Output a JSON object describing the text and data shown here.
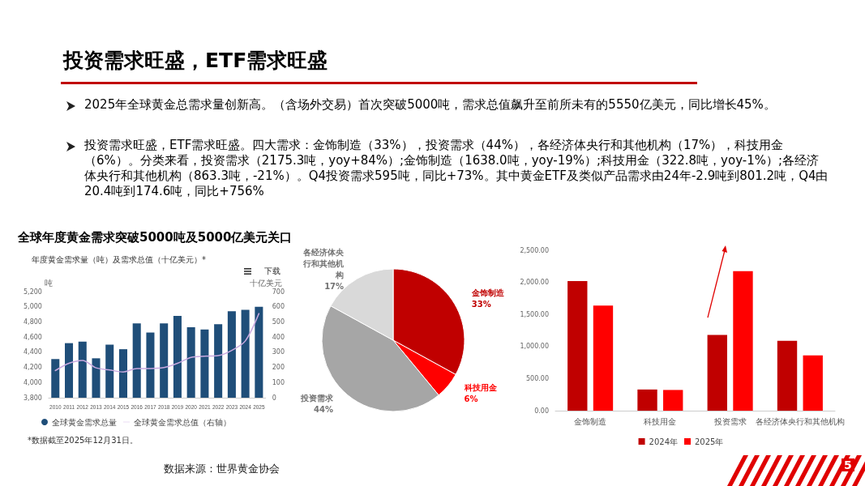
{
  "chart_data": [
    {
      "type": "other",
      "title": "投资需求旺盛，ETF需求旺盛",
      "annotations": [
        "2025年全球黄金总需求量创新高。（含场外交易）首次突破5000吨，需求总值飙升至前所未有的5550亿美元，同比增长45%。",
        "投资需求旺盛，ETF需求旺盛。四大需求：金饰制造（33%），投资需求（44%），各经济体央行和其他机构（17%），科技用金（6%）。分类来看，投资需求（2175.3吨，yoy+84%）;金饰制造（1638.0吨，yoy-19%）;科技用金（322.8吨，yoy-1%）;各经济体央行和其他机构（863.3吨，-21%）。Q4投资需求595吨，同比+73%。其中黄金ETF及类似产品需求由24年-2.9吨到801.2吨，Q4由20.4吨到174.6吨，同比+756%",
        "全球年度黄金需求突破5000吨及5000亿美元关口",
        "数据来源：世界黄金协会",
        "5"
      ]
    },
    {
      "type": "bar",
      "title": "年度黄金需求量（吨）及需求总值（十亿美元）*",
      "ylabel": "吨",
      "y2label": "十亿美元",
      "categories": [
        "2010",
        "2011",
        "2012",
        "2013",
        "2014",
        "2015",
        "2016",
        "2017",
        "2018",
        "2019",
        "2020",
        "2021",
        "2022",
        "2023",
        "2024",
        "2025"
      ],
      "series": [
        {
          "name": "全球黄金需求总量",
          "type": "bar",
          "color": "#1f4e79",
          "values": [
            4310,
            4520,
            4540,
            4320,
            4500,
            4440,
            4780,
            4660,
            4780,
            4880,
            4730,
            4700,
            4770,
            4940,
            4960,
            5000
          ]
        },
        {
          "name": "全球黄金需求总值（右轴）",
          "type": "line",
          "axis": "y2",
          "color": "#c9a9e0",
          "values": [
            179,
            227,
            246,
            197,
            183,
            170,
            193,
            193,
            199,
            227,
            266,
            274,
            278,
            312,
            375,
            555
          ]
        }
      ],
      "ylim": [
        3800,
        5200
      ],
      "yticks": [
        {
          "value": 3800,
          "label": "3,800"
        },
        {
          "value": 4000,
          "label": "4,000"
        },
        {
          "value": 4200,
          "label": "4,200"
        },
        {
          "value": 4400,
          "label": "4,400"
        },
        {
          "value": 4600,
          "label": "4,600"
        },
        {
          "value": 4800,
          "label": "4,800"
        },
        {
          "value": 5000,
          "label": "5,000"
        },
        {
          "value": 5200,
          "label": "5,200"
        }
      ],
      "y2lim": [
        0,
        700
      ],
      "y2ticks": [
        0,
        100,
        200,
        300,
        400,
        500,
        600,
        700
      ],
      "legend": "bottom left",
      "marker": "none",
      "annotations": [
        "下载",
        "*数据截至2025年12月31日。"
      ]
    },
    {
      "type": "pie",
      "categories": [
        "金饰制造",
        "科技用金",
        "投资需求",
        "各经济体央行和其他机构"
      ],
      "values": [
        33,
        6,
        44,
        17
      ],
      "colors": [
        "#c00000",
        "#ff0000",
        "#a6a6a6",
        "#d9d9d9"
      ],
      "value_labels": [
        "33%",
        "6%",
        "44%",
        "17%"
      ]
    },
    {
      "type": "bar",
      "categories": [
        "金饰制造",
        "科技用金",
        "投资需求",
        "各经济体央行和其他机构"
      ],
      "series": [
        {
          "name": "2024年",
          "color": "#c00000",
          "values": [
            2020,
            330,
            1180,
            1090
          ]
        },
        {
          "name": "2025年",
          "color": "#ff0000",
          "values": [
            1638,
            322.8,
            2175.3,
            863.3
          ]
        }
      ],
      "ylim": [
        0,
        2500
      ],
      "yticks": [
        {
          "value": 0,
          "label": "0.00"
        },
        {
          "value": 500,
          "label": "500.00"
        },
        {
          "value": 1000,
          "label": "1,000.00"
        },
        {
          "value": 1500,
          "label": "1,500.00"
        },
        {
          "value": 2000,
          "label": "2,000.00"
        },
        {
          "value": 2500,
          "label": "2,500.00"
        }
      ],
      "legend": "bottom"
    }
  ]
}
